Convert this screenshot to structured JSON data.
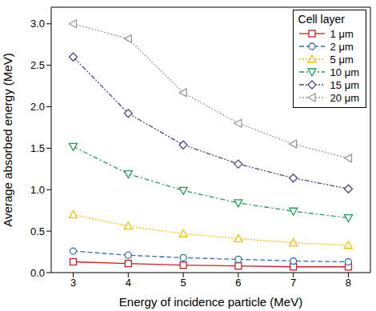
{
  "chart_data": {
    "type": "line",
    "x_label": "Energy of incidence particle (MeV)",
    "y_label": "Average absorbed energy (MeV)",
    "legend_title": "Cell layer",
    "legend": "upper right",
    "x": [
      3,
      4,
      5,
      6,
      7,
      8
    ],
    "xlim": [
      2.6,
      8.4
    ],
    "xticks": [
      3,
      4,
      5,
      6,
      7,
      8
    ],
    "ylim": [
      0,
      3.2
    ],
    "yticks": [
      {
        "value": 0,
        "label": "0.0"
      },
      0.5,
      {
        "value": 1,
        "label": "1.0"
      },
      1.5,
      {
        "value": 2,
        "label": "2.0"
      },
      2.5,
      {
        "value": 3,
        "label": "3.0"
      }
    ],
    "series": [
      {
        "name": "1 μm",
        "color": "#cc1f1f",
        "marker": "square",
        "line_style": "solid",
        "values": [
          0.13,
          0.11,
          0.09,
          0.08,
          0.07,
          0.07
        ]
      },
      {
        "name": "2 μm",
        "color": "#2f6fb0",
        "marker": "circle",
        "line_style": "dashed",
        "values": [
          0.26,
          0.21,
          0.18,
          0.16,
          0.14,
          0.13
        ]
      },
      {
        "name": "5 μm",
        "color": "#f2c200",
        "marker": "triangle-up",
        "line_style": "dotted",
        "values": [
          0.7,
          0.56,
          0.47,
          0.41,
          0.36,
          0.33
        ]
      },
      {
        "name": "10 μm",
        "color": "#1f9e5a",
        "marker": "triangle-down",
        "line_style": "dashdot",
        "values": [
          1.52,
          1.19,
          0.99,
          0.84,
          0.74,
          0.66
        ]
      },
      {
        "name": "15 μm",
        "color": "#4b4b7c",
        "marker": "diamond",
        "line_style": "dashdotdot",
        "values": [
          2.6,
          1.92,
          1.54,
          1.31,
          1.14,
          1.01
        ]
      },
      {
        "name": "20 μm",
        "color": "#9a9a9a",
        "marker": "triangle-left",
        "line_style": "dotted",
        "values": [
          3.0,
          2.82,
          2.17,
          1.8,
          1.55,
          1.38
        ]
      }
    ]
  }
}
